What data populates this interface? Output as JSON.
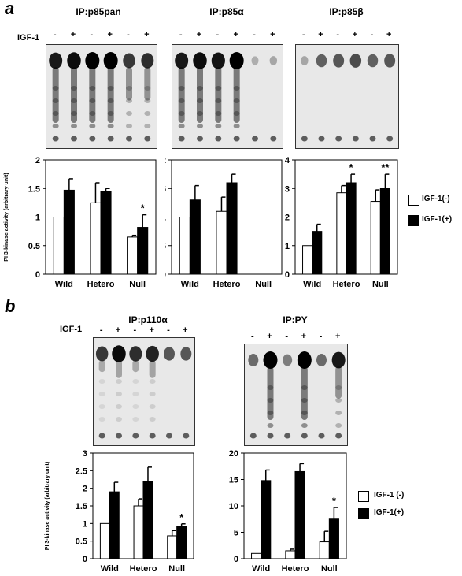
{
  "panel_a_label": "a",
  "panel_b_label": "b",
  "igf_label": "IGF-1",
  "lane_signs": [
    "-",
    "+",
    "-",
    "+",
    "-",
    "+"
  ],
  "yaxis_label": "PI 3-kinase activity (arbitrary unit)",
  "legend": {
    "minus": "IGF-1(-)",
    "plus": "IGF-1(+)"
  },
  "legend_b": {
    "minus": "IGF-1 (-)",
    "plus": "IGF-1(+)"
  },
  "blots_a": [
    {
      "title": "IP:p85pan",
      "signal": [
        0.9,
        0.95,
        1.0,
        1.0,
        0.75,
        0.8
      ],
      "streak": [
        1,
        1,
        1,
        1,
        0.6,
        0.6
      ]
    },
    {
      "title": "IP:p85α",
      "signal": [
        0.9,
        0.95,
        0.92,
        1.0,
        0.1,
        0.15
      ],
      "streak": [
        1,
        1,
        1,
        1,
        0,
        0
      ]
    },
    {
      "title": "IP:p85β",
      "signal": [
        0.15,
        0.55,
        0.6,
        0.65,
        0.55,
        0.6
      ],
      "streak": [
        0,
        0,
        0,
        0,
        0,
        0
      ]
    }
  ],
  "blots_b": [
    {
      "title": "IP:p110α",
      "signal": [
        0.75,
        0.95,
        0.8,
        0.85,
        0.6,
        0.6
      ],
      "streak": [
        0.2,
        0.3,
        0.2,
        0.3,
        0,
        0
      ]
    },
    {
      "title": "IP:PY",
      "signal": [
        0.5,
        1.0,
        0.4,
        1.0,
        0.5,
        0.9
      ],
      "streak": [
        0,
        1,
        0,
        1,
        0,
        0.6
      ]
    }
  ],
  "chart_data": [
    {
      "type": "bar",
      "categories": [
        "Wild",
        "Hetero",
        "Null"
      ],
      "series": [
        {
          "name": "IGF-1(-)",
          "values": [
            1.0,
            1.25,
            0.65
          ],
          "errors": [
            0.0,
            0.35,
            0.03
          ]
        },
        {
          "name": "IGF-1(+)",
          "values": [
            1.47,
            1.45,
            0.82
          ],
          "errors": [
            0.2,
            0.05,
            0.22
          ]
        }
      ],
      "ylim": [
        0,
        2
      ],
      "yticks": [
        "0",
        "0.5",
        "1",
        "1.5",
        "2"
      ],
      "ylabel": "PI 3-kinase activity (arbitrary unit)",
      "annotations": [
        "",
        "",
        "*"
      ]
    },
    {
      "type": "bar",
      "categories": [
        "Wild",
        "Hetero",
        "Null"
      ],
      "series": [
        {
          "name": "IGF-1(-)",
          "values": [
            1.0,
            1.1,
            0
          ],
          "errors": [
            0.0,
            0.25,
            0
          ]
        },
        {
          "name": "IGF-1(+)",
          "values": [
            1.3,
            1.6,
            0
          ],
          "errors": [
            0.25,
            0.15,
            0
          ]
        }
      ],
      "ylim": [
        0,
        2
      ],
      "yticks": [
        "0",
        "0.5",
        "1",
        "1.5",
        "2"
      ],
      "annotations": [
        "",
        "",
        ""
      ]
    },
    {
      "type": "bar",
      "categories": [
        "Wild",
        "Hetero",
        "Null"
      ],
      "series": [
        {
          "name": "IGF-1(-)",
          "values": [
            1.0,
            2.85,
            2.55
          ],
          "errors": [
            0.0,
            0.25,
            0.4
          ]
        },
        {
          "name": "IGF-1(+)",
          "values": [
            1.5,
            3.2,
            3.0
          ],
          "errors": [
            0.25,
            0.3,
            0.5
          ]
        }
      ],
      "ylim": [
        0,
        4
      ],
      "yticks": [
        "0",
        "1",
        "2",
        "3",
        "4"
      ],
      "annotations": [
        "",
        "*",
        "**"
      ]
    },
    {
      "type": "bar",
      "categories": [
        "Wild",
        "Hetero",
        "Null"
      ],
      "series": [
        {
          "name": "IGF-1 (-)",
          "values": [
            1.0,
            1.5,
            0.65
          ],
          "errors": [
            0.0,
            0.2,
            0.15
          ]
        },
        {
          "name": "IGF-1(+)",
          "values": [
            1.9,
            2.2,
            0.92
          ],
          "errors": [
            0.27,
            0.4,
            0.07
          ]
        }
      ],
      "ylim": [
        0,
        3
      ],
      "yticks": [
        "0",
        "0.5",
        "1",
        "1.5",
        "2",
        "2.5",
        "3"
      ],
      "ylabel": "PI 3-kinase activity (arbitrary unit)",
      "annotations": [
        "",
        "",
        "*"
      ]
    },
    {
      "type": "bar",
      "categories": [
        "Wild",
        "Hetero",
        "Null"
      ],
      "series": [
        {
          "name": "IGF-1 (-)",
          "values": [
            1.0,
            1.5,
            3.2
          ],
          "errors": [
            0.0,
            0.3,
            2.0
          ]
        },
        {
          "name": "IGF-1(+)",
          "values": [
            14.8,
            16.5,
            7.5
          ],
          "errors": [
            2.0,
            1.5,
            2.2
          ]
        }
      ],
      "ylim": [
        0,
        20
      ],
      "yticks": [
        "0",
        "5",
        "10",
        "15",
        "20"
      ],
      "annotations": [
        "",
        "",
        "*"
      ]
    }
  ]
}
